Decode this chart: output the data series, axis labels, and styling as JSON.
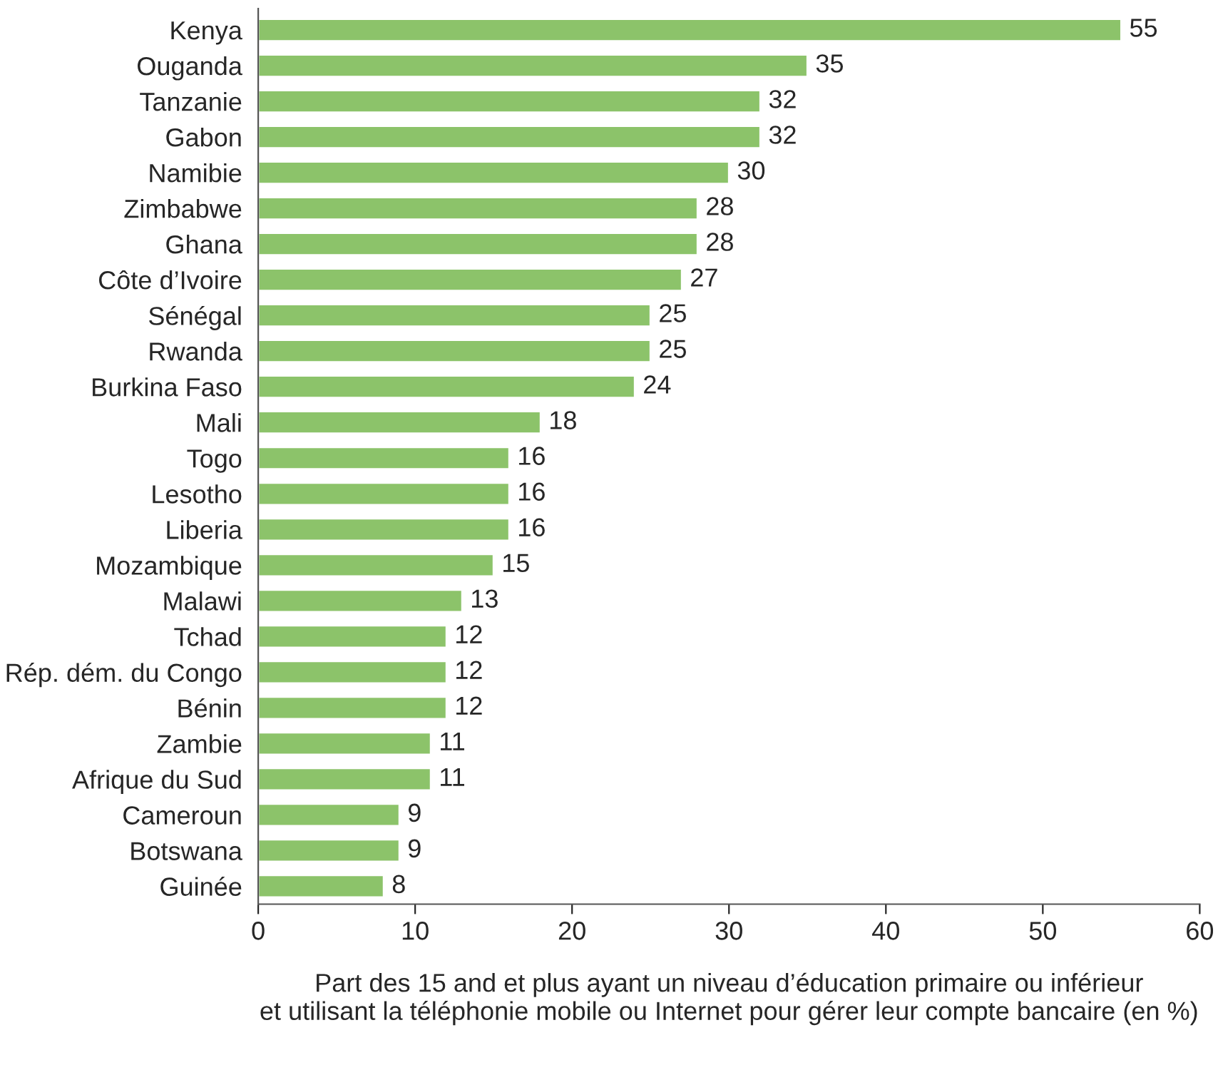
{
  "chart_data": {
    "type": "bar",
    "orientation": "horizontal",
    "categories": [
      "Kenya",
      "Ouganda",
      "Tanzanie",
      "Gabon",
      "Namibie",
      "Zimbabwe",
      "Ghana",
      "Côte d’Ivoire",
      "Sénégal",
      "Rwanda",
      "Burkina Faso",
      "Mali",
      "Togo",
      "Lesotho",
      "Liberia",
      "Mozambique",
      "Malawi",
      "Tchad",
      "Rép. dém. du Congo",
      "Bénin",
      "Zambie",
      "Afrique du Sud",
      "Cameroun",
      "Botswana",
      "Guinée"
    ],
    "values": [
      55,
      35,
      32,
      32,
      30,
      28,
      28,
      27,
      25,
      25,
      24,
      18,
      16,
      16,
      16,
      15,
      13,
      12,
      12,
      12,
      11,
      11,
      9,
      9,
      8
    ],
    "color": "#8cc36a",
    "xlim": [
      0,
      60
    ],
    "xticks": [
      0,
      10,
      20,
      30,
      40,
      50,
      60
    ],
    "xlabel": "Part des 15 and et plus ayant un niveau d’éducation primaire ou inférieur\net utilisant la téléphonie mobile ou Internet pour gérer leur compte bancaire (en %)",
    "data_labels": true,
    "grid": false,
    "legend": false
  }
}
